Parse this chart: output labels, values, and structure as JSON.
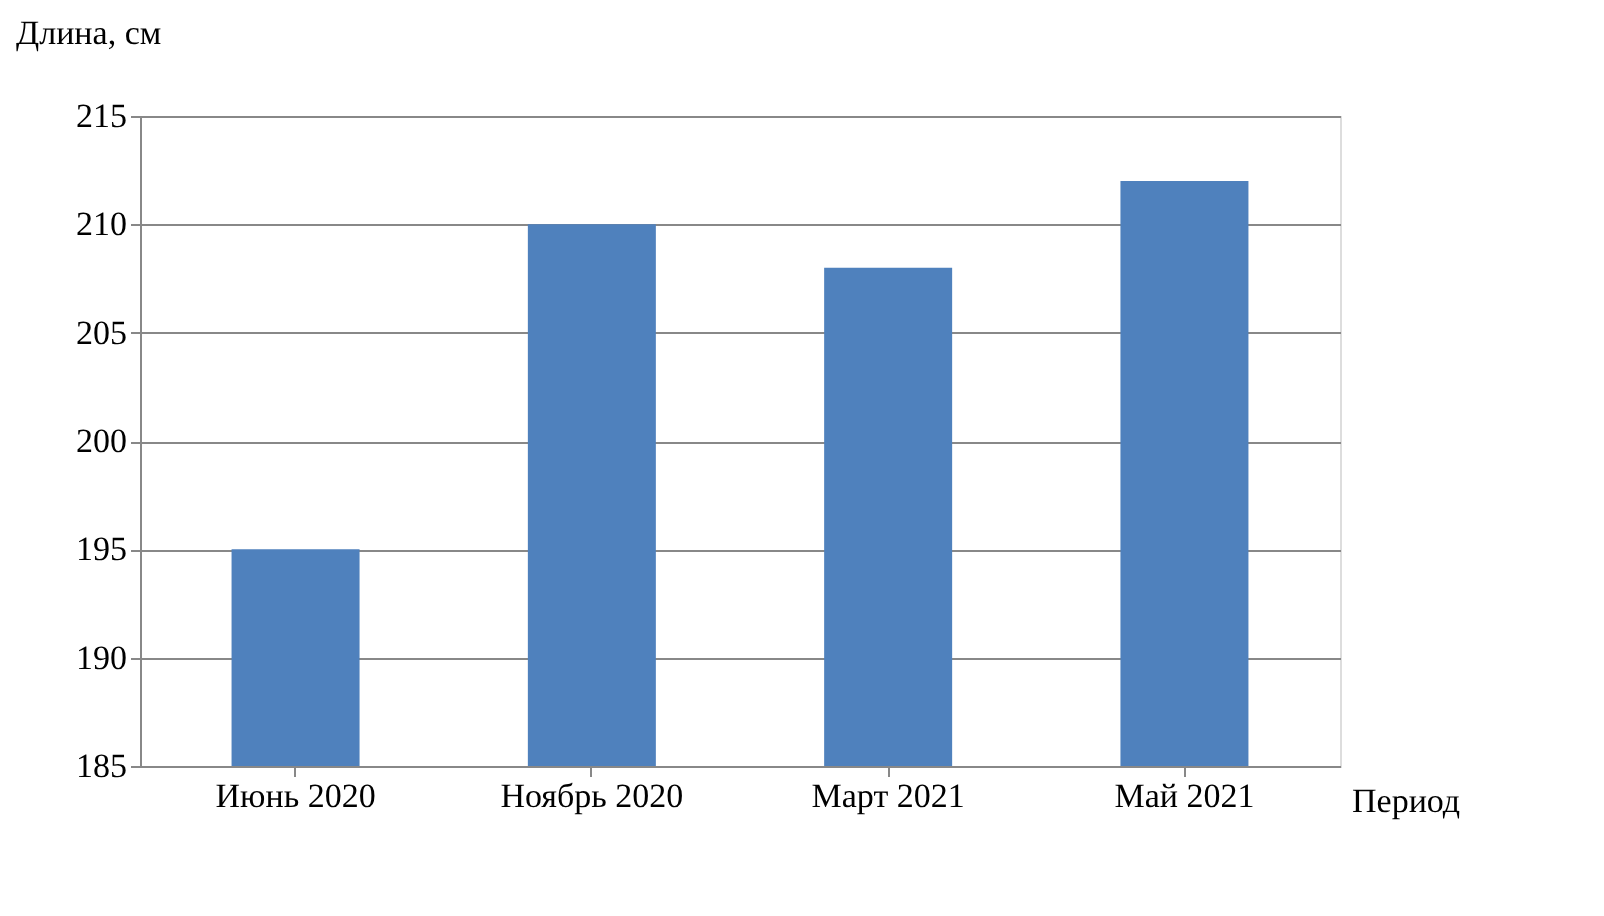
{
  "chart_data": {
    "type": "bar",
    "ylabel": "Длина, см",
    "xlabel": "Период",
    "categories": [
      "Июнь 2020",
      "Ноябрь 2020",
      "Март 2021",
      "Май 2021"
    ],
    "values": [
      195,
      210,
      208,
      212
    ],
    "color": "#4f81bd",
    "ylim": [
      185,
      215
    ],
    "yticks": [
      185,
      190,
      195,
      200,
      205,
      210,
      215
    ],
    "grid": "y"
  }
}
